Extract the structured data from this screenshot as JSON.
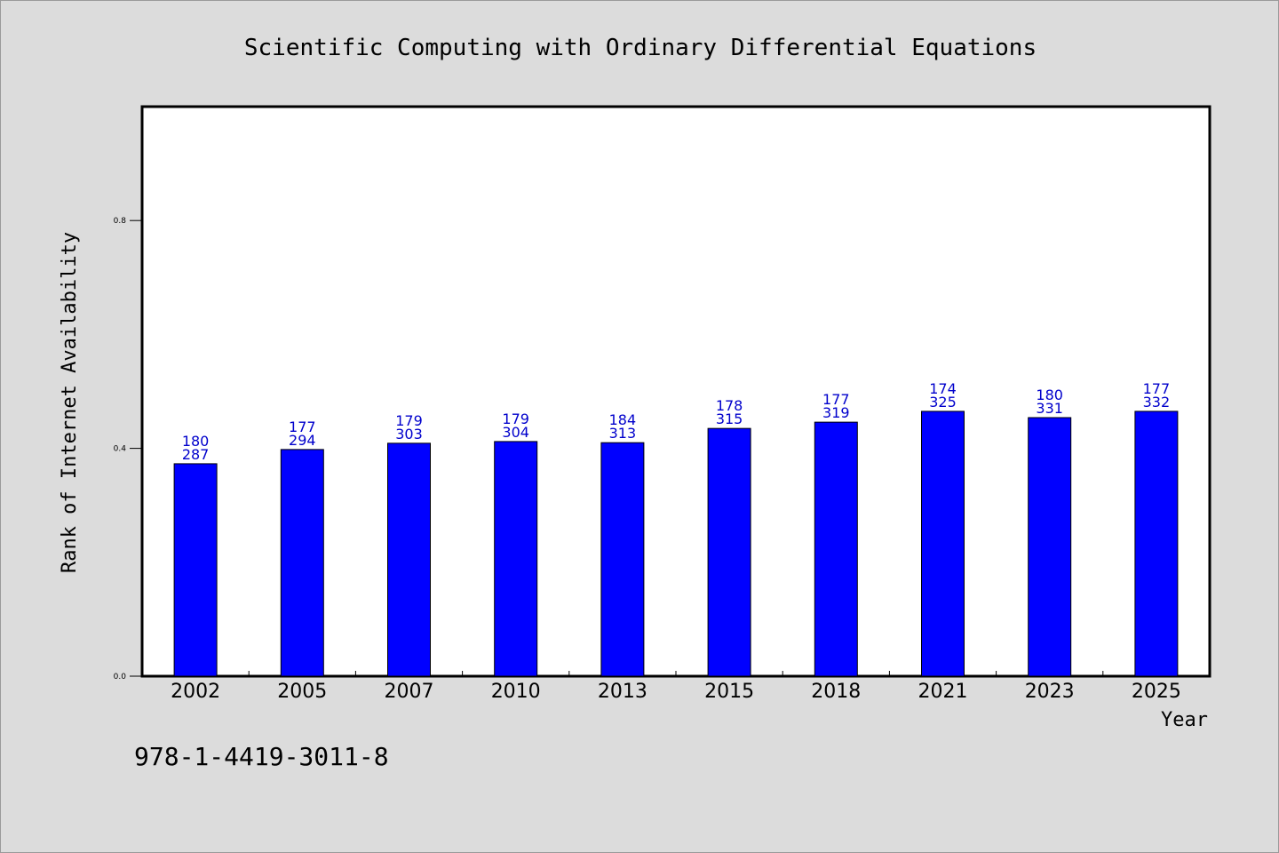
{
  "chart_data": {
    "type": "bar",
    "title": "Scientific Computing with Ordinary Differential Equations",
    "xlabel": "Year",
    "ylabel": "Rank of Internet Availability",
    "categories": [
      "2002",
      "2005",
      "2007",
      "2010",
      "2013",
      "2015",
      "2018",
      "2021",
      "2023",
      "2025"
    ],
    "values": [
      0.373,
      0.398,
      0.409,
      0.412,
      0.41,
      0.435,
      0.446,
      0.465,
      0.454,
      0.465
    ],
    "labels_top": [
      "180",
      "177",
      "179",
      "179",
      "184",
      "178",
      "177",
      "174",
      "180",
      "177"
    ],
    "labels_bottom": [
      "287",
      "294",
      "303",
      "304",
      "313",
      "315",
      "319",
      "325",
      "331",
      "332"
    ],
    "yticks": [
      "0.0",
      "0.4",
      "0.8"
    ],
    "ylim": [
      0,
      1.0
    ],
    "grid": false,
    "colors": {
      "bar": "#0000ff",
      "bar_label": "#0000cc",
      "plot_bg": "#ffffff",
      "page_bg": "#dcdcdc"
    }
  },
  "footer": {
    "isbn": "978-1-4419-3011-8"
  }
}
